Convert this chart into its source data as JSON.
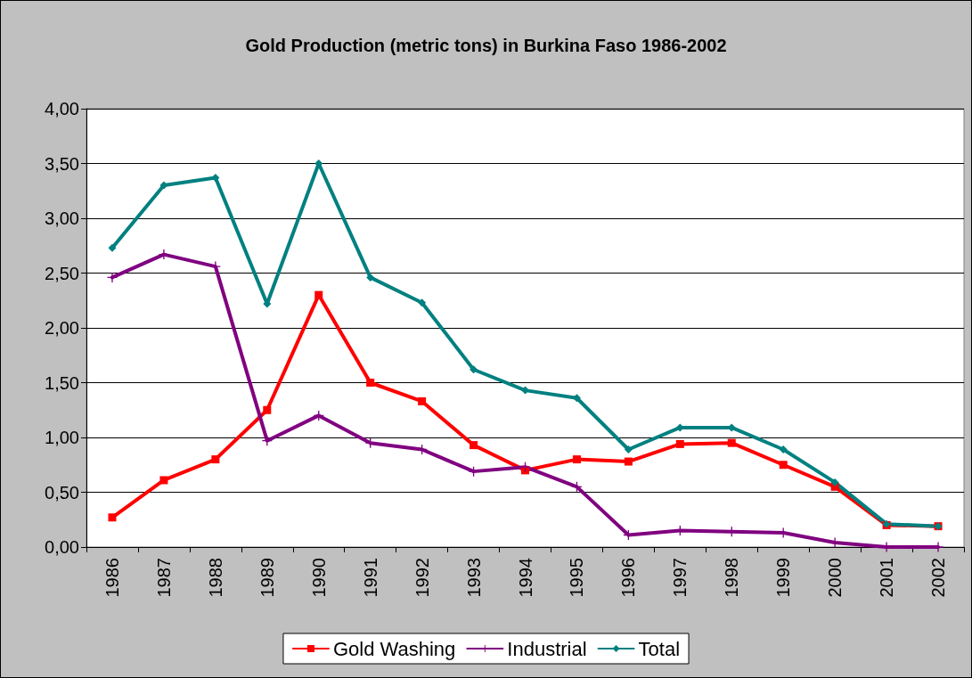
{
  "chart_data": {
    "type": "line",
    "title": "Gold Production (metric tons) in Burkina Faso 1986-2002",
    "categories": [
      "1986",
      "1987",
      "1988",
      "1989",
      "1990",
      "1991",
      "1992",
      "1993",
      "1994",
      "1995",
      "1996",
      "1997",
      "1998",
      "1999",
      "2000",
      "2001",
      "2002"
    ],
    "series": [
      {
        "name": "Gold Washing",
        "color": "#ff0000",
        "marker": "square",
        "values": [
          0.27,
          0.61,
          0.8,
          1.25,
          2.3,
          1.5,
          1.33,
          0.93,
          0.7,
          0.8,
          0.78,
          0.94,
          0.95,
          0.75,
          0.55,
          0.2,
          0.19
        ]
      },
      {
        "name": "Industrial",
        "color": "#800080",
        "marker": "cross",
        "values": [
          2.46,
          2.67,
          2.56,
          0.97,
          1.2,
          0.95,
          0.89,
          0.69,
          0.73,
          0.55,
          0.11,
          0.15,
          0.14,
          0.13,
          0.04,
          0.0,
          0.0
        ]
      },
      {
        "name": "Total",
        "color": "#008080",
        "marker": "diamond",
        "values": [
          2.73,
          3.3,
          3.37,
          2.22,
          3.5,
          2.46,
          2.23,
          1.62,
          1.43,
          1.36,
          0.89,
          1.09,
          1.09,
          0.89,
          0.59,
          0.21,
          0.19
        ]
      }
    ],
    "ylim": [
      0,
      4
    ],
    "yticks": [
      {
        "value": 0,
        "label": "0,00"
      },
      {
        "value": 0.5,
        "label": "0,50"
      },
      {
        "value": 1,
        "label": "1,00"
      },
      {
        "value": 1.5,
        "label": "1,50"
      },
      {
        "value": 2,
        "label": "2,00"
      },
      {
        "value": 2.5,
        "label": "2,50"
      },
      {
        "value": 3,
        "label": "3,00"
      },
      {
        "value": 3.5,
        "label": "3,50"
      },
      {
        "value": 4,
        "label": "4,00"
      }
    ],
    "grid": "y",
    "legend": "bottom",
    "line_style": "solid"
  }
}
